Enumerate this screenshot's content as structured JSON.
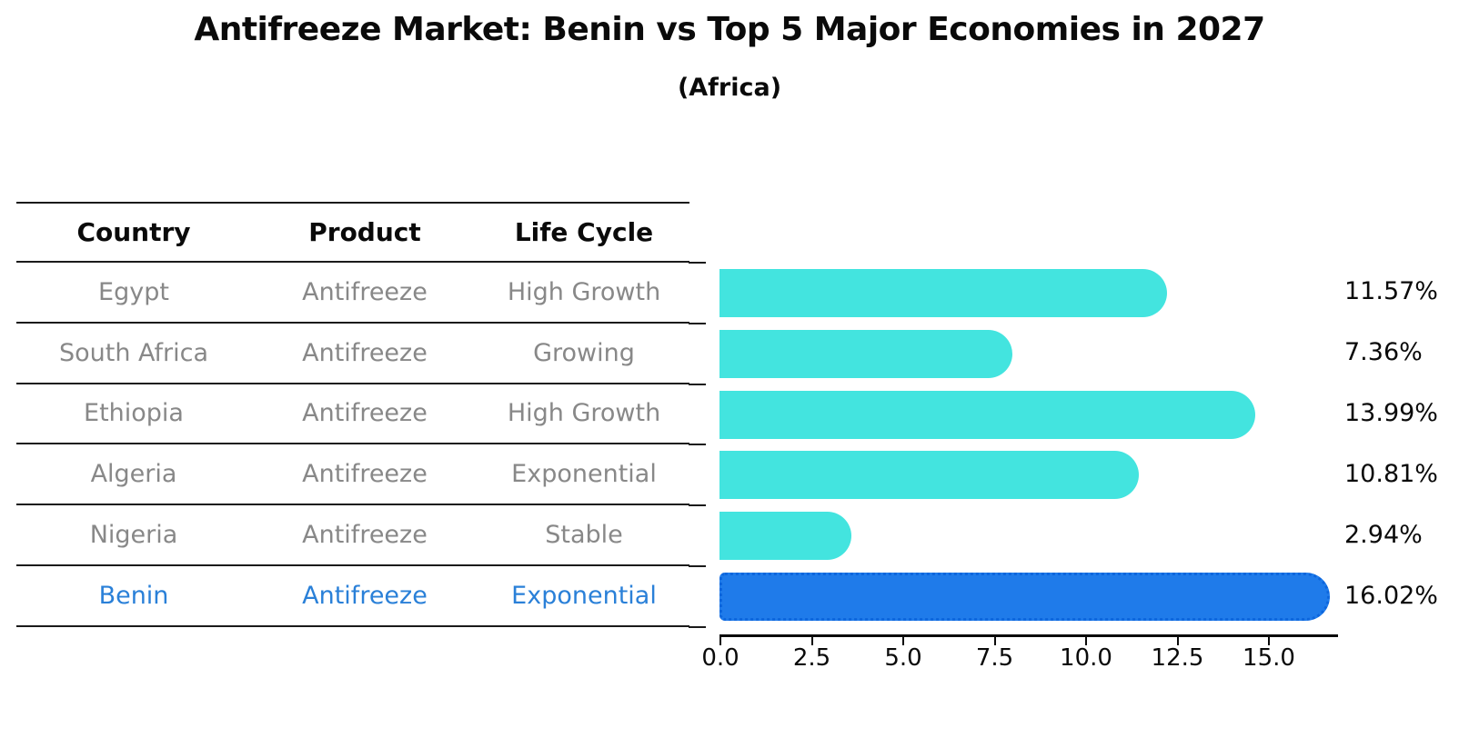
{
  "header": {
    "title": "Antifreeze Market: Benin vs Top 5 Major Economies in 2027",
    "subtitle": "(Africa)"
  },
  "table": {
    "columns": [
      "Country",
      "Product",
      "Life Cycle"
    ],
    "rows": [
      {
        "country": "Egypt",
        "product": "Antifreeze",
        "life_cycle": "High Growth"
      },
      {
        "country": "South Africa",
        "product": "Antifreeze",
        "life_cycle": "Growing"
      },
      {
        "country": "Ethiopia",
        "product": "Antifreeze",
        "life_cycle": "High Growth"
      },
      {
        "country": "Algeria",
        "product": "Antifreeze",
        "life_cycle": "Exponential"
      },
      {
        "country": "Nigeria",
        "product": "Antifreeze",
        "life_cycle": "Stable"
      },
      {
        "country": "Benin",
        "product": "Antifreeze",
        "life_cycle": "Exponential"
      }
    ],
    "highlight_index": 5
  },
  "chart_data": {
    "type": "bar",
    "orientation": "horizontal",
    "title": "Antifreeze Market: Benin vs Top 5 Major Economies in 2027",
    "subtitle": "(Africa)",
    "categories": [
      "Egypt",
      "South Africa",
      "Ethiopia",
      "Algeria",
      "Nigeria",
      "Benin"
    ],
    "values": [
      11.57,
      7.36,
      13.99,
      10.81,
      2.94,
      16.02
    ],
    "value_labels": [
      "11.57%",
      "7.36%",
      "13.99%",
      "10.81%",
      "2.94%",
      "16.02%"
    ],
    "highlight_index": 5,
    "xlim": [
      0,
      16.9
    ],
    "x_ticks": [
      0.0,
      2.5,
      5.0,
      7.5,
      10.0,
      12.5,
      15.0
    ],
    "x_tick_labels": [
      "0.0",
      "2.5",
      "5.0",
      "7.5",
      "10.0",
      "12.5",
      "15.0"
    ],
    "grid": false,
    "legend": null
  },
  "colors": {
    "bar": "#43E4DF",
    "highlight_bar": "#1F7BEA",
    "highlight_bar_border": "#0d66dd",
    "highlight_text": "#2A80D8",
    "row_text": "#888888",
    "axis": "#0a0a0a"
  }
}
